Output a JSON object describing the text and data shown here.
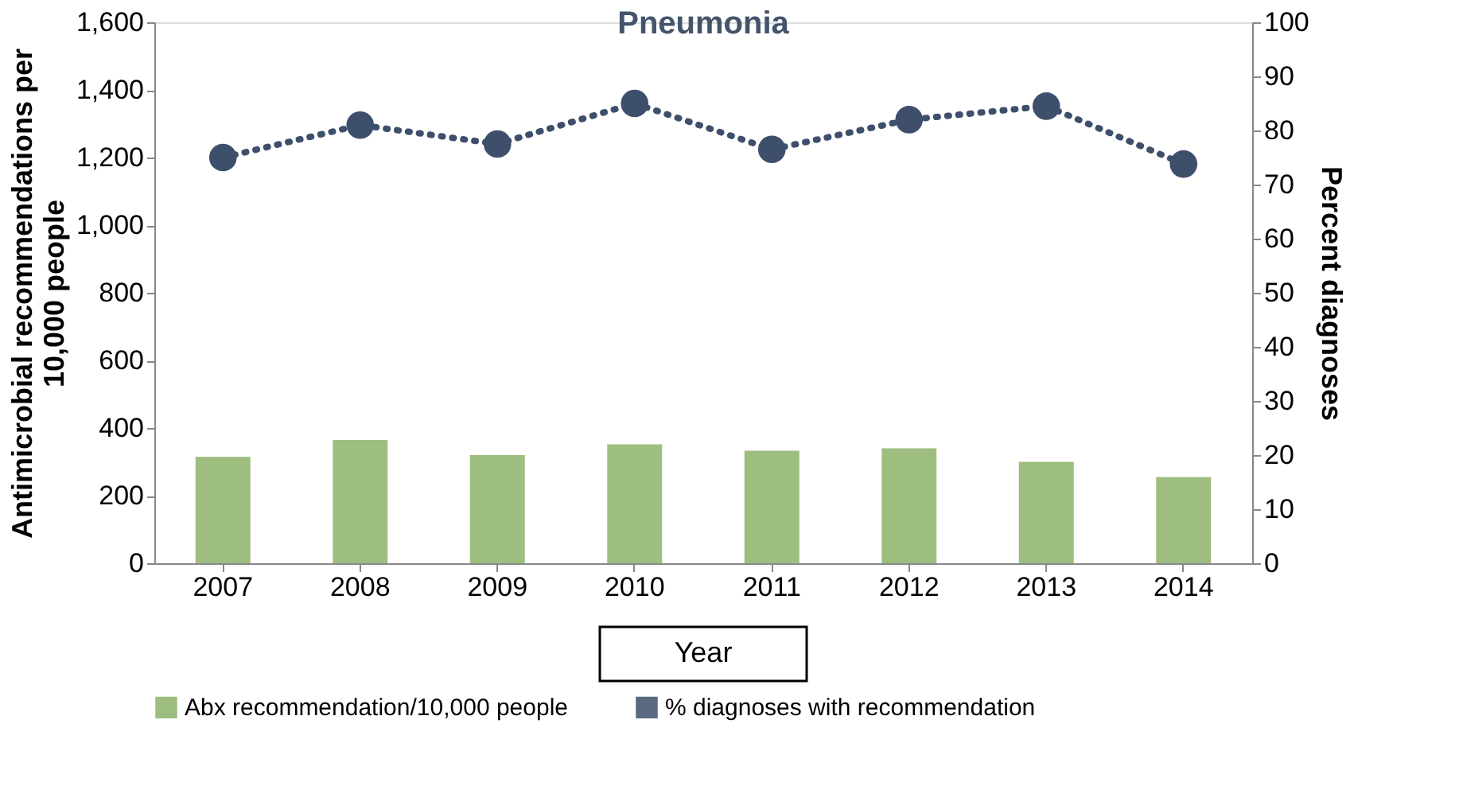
{
  "chart_data": {
    "type": "bar",
    "title": "Pneumonia",
    "xlabel": "Year",
    "ylabel": "Antimicrobial recommendations per 10,000 people",
    "y2label": "Percent diagnoses",
    "categories": [
      "2007",
      "2008",
      "2009",
      "2010",
      "2011",
      "2012",
      "2013",
      "2014"
    ],
    "series": [
      {
        "name": "Abx recommendation/10,000 people",
        "color": "#8db36a",
        "values": [
          315,
          365,
          320,
          352,
          333,
          340,
          300,
          255
        ]
      },
      {
        "name": "% diagnoses with recommendation",
        "type": "line",
        "axis": "y2",
        "color": "#3e4f6b",
        "marker": "circle",
        "line_style": "dotted",
        "values": [
          75,
          81,
          77.5,
          85,
          76.5,
          82,
          84.5,
          73.8
        ]
      }
    ],
    "ylim": [
      0,
      1600
    ],
    "yticks": [
      0,
      200,
      400,
      600,
      800,
      {
        "value": 1000,
        "label": "1,000"
      },
      {
        "value": 1200,
        "label": "1,200"
      },
      {
        "value": 1400,
        "label": "1,400"
      },
      {
        "value": 1600,
        "label": "1,600"
      }
    ],
    "y2lim": [
      0,
      100
    ],
    "y2ticks": [
      0,
      10,
      20,
      30,
      40,
      50,
      60,
      70,
      80,
      90,
      100
    ],
    "grid": false,
    "legend": "bottom"
  }
}
